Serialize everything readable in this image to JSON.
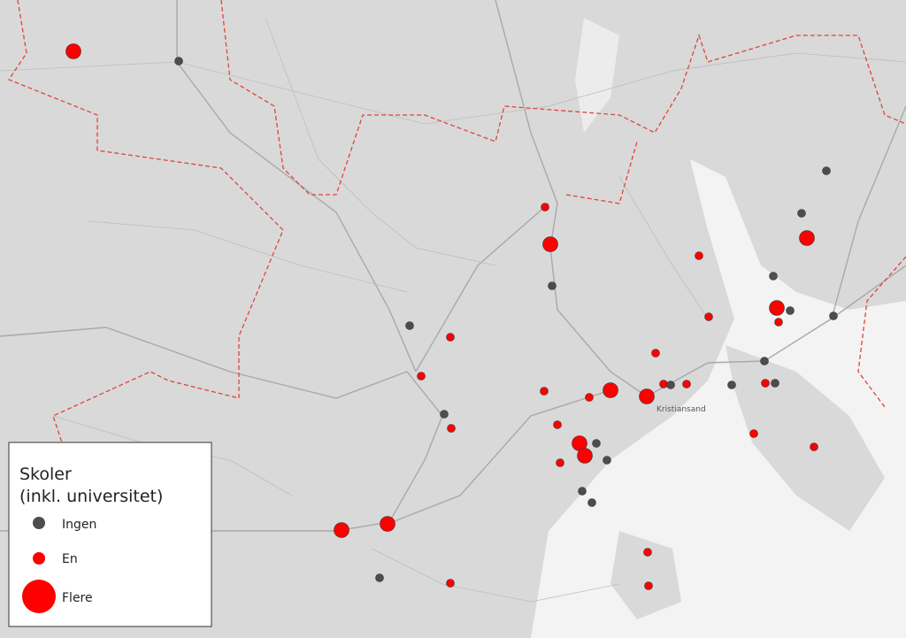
{
  "map": {
    "place_label": "Kristiansand",
    "legend": {
      "title": "Skoler",
      "subtitle": "(inkl. universitet)",
      "items": [
        {
          "label": "Ingen"
        },
        {
          "label": "En"
        },
        {
          "label": "Flere"
        }
      ]
    }
  }
}
